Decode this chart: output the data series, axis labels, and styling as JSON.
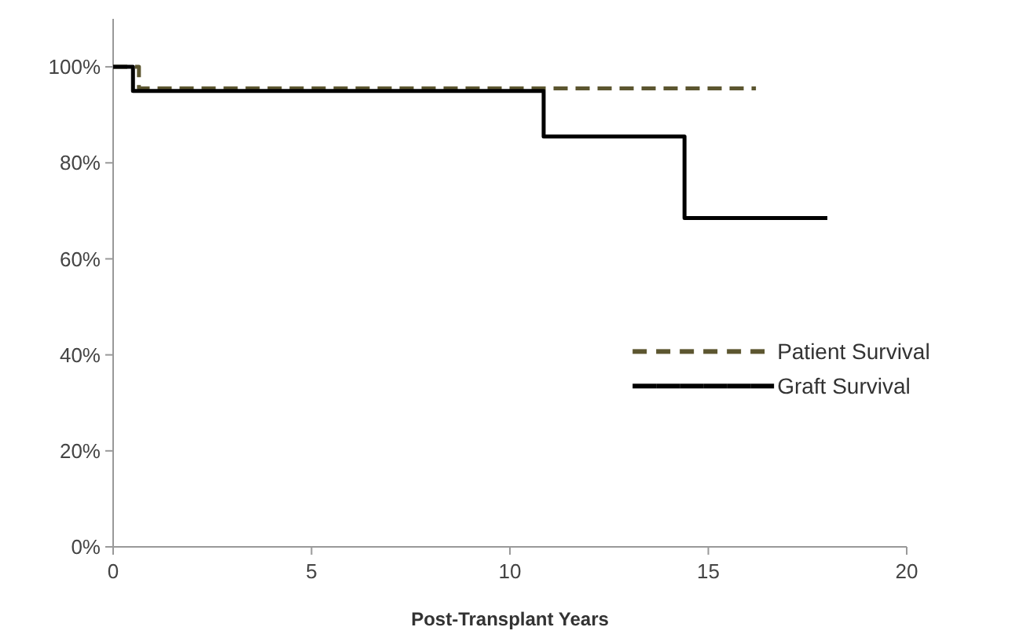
{
  "chart_data": {
    "type": "step",
    "xlabel": "Post-Transplant Years",
    "xlim": [
      0,
      20
    ],
    "xticks": [
      0,
      5,
      10,
      15,
      20
    ],
    "ylim": [
      0,
      110
    ],
    "yticks": [
      {
        "value": 0,
        "label": "0%"
      },
      {
        "value": 20,
        "label": "20%"
      },
      {
        "value": 40,
        "label": "40%"
      },
      {
        "value": 60,
        "label": "60%"
      },
      {
        "value": 80,
        "label": "80%"
      },
      {
        "value": 100,
        "label": "100%"
      }
    ],
    "grid": false,
    "legend": "right",
    "marker": "none",
    "series": [
      {
        "name": "Patient Survival",
        "color": "#5c5630",
        "line_style": "dashed",
        "x": [
          0,
          0.65,
          16.2
        ],
        "values": [
          100,
          95.5,
          95.5
        ]
      },
      {
        "name": "Graft Survival",
        "color": "#000000",
        "line_style": "solid",
        "x": [
          0,
          0.5,
          10.85,
          14.4,
          18
        ],
        "values": [
          100,
          95,
          85.5,
          68.5,
          68.5
        ]
      }
    ]
  }
}
